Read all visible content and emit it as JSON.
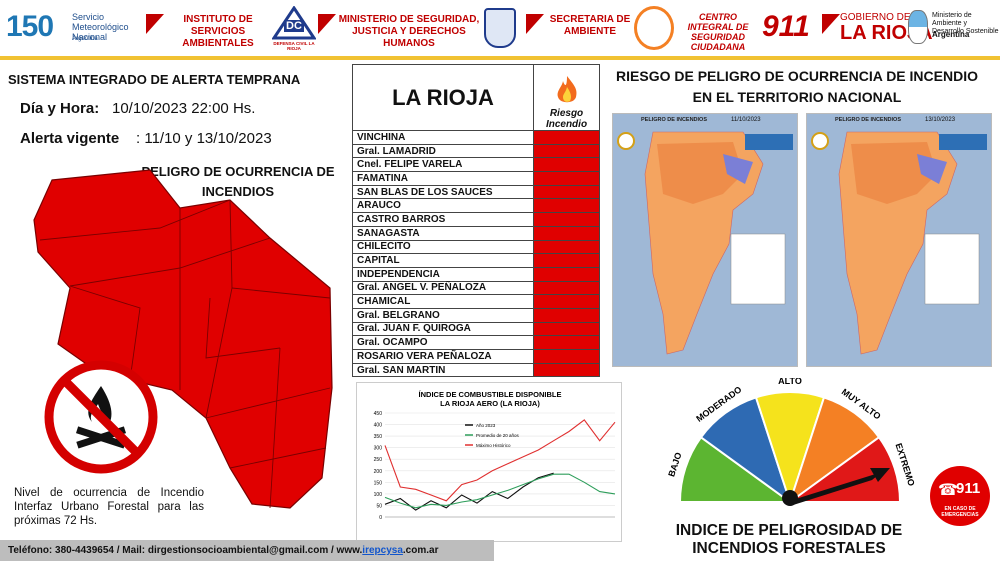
{
  "header": {
    "smn_number": "150",
    "smn_name": "Servicio Meteorológico Nacional",
    "smn_country": "Argentina",
    "inst_servicios": "INSTITUTO DE SERVICIOS AMBIENTALES",
    "dc_badge": "DC",
    "dc_label": "DEFENSA CIVIL LA RIOJA",
    "ministerio_seg": "MINISTERIO DE SEGURIDAD, JUSTICIA Y DERECHOS HUMANOS",
    "secretaria": "SECRETARIA DE AMBIENTE",
    "centro": "CENTRO INTEGRAL DE SEGURIDAD CIUDADANA",
    "n911": "911",
    "gobierno_top": "GOBIERNO DE",
    "gobierno_bottom": "LA RIOJA",
    "min_ambiente": "Ministerio de Ambiente y Desarrollo Sostenible",
    "min_ambiente_country": "Argentina"
  },
  "left": {
    "title": "SISTEMA INTEGRADO DE ALERTA TEMPRANA",
    "dia_hora_label": "Día y Hora:",
    "dia_hora_value": "10/10/2023  22:00 Hs.",
    "alerta_label": "Alerta vigente",
    "alerta_value": ": 11/10 y 13/10/2023",
    "peligro_title": "PELIGRO DE OCURRENCIA DE INCENDIOS",
    "nivel_text": "Nivel de ocurrencia de Incendio Interfaz Urbano Forestal para las próximas 72 Hs."
  },
  "table": {
    "title": "LA RIOJA",
    "risk_header": "Riesgo Incendio",
    "risk_color": "#e00000",
    "departments": [
      "VINCHINA",
      "Gral. LAMADRID",
      "Cnel. FELIPE VARELA",
      "FAMATINA",
      "SAN BLAS DE LOS SAUCES",
      "ARAUCO",
      "CASTRO BARROS",
      "SANAGASTA",
      "CHILECITO",
      "CAPITAL",
      "INDEPENDENCIA",
      "Gral. ANGEL V.  PEÑALOZA",
      "CHAMICAL",
      "Gral. BELGRANO",
      "Gral. JUAN F. QUIROGA",
      "Gral. OCAMPO",
      "ROSARIO VERA PEÑALOZA",
      "Gral. SAN MARTIN"
    ]
  },
  "maps": {
    "title": "RIESGO DE PELIGRO DE OCURRENCIA DE INCENDIO EN EL TERRITORIO NACIONAL",
    "map1_title": "PELIGRO DE INCENDIOS",
    "map1_date": "11/10/2023",
    "map2_title": "PELIGRO DE INCENDIOS",
    "map2_date": "13/10/2023"
  },
  "chart_data": {
    "type": "line",
    "title": "ÍNDICE DE COMBUSTIBLE DISPONIBLE LA RIOJA AERO (LA RIOJA)",
    "ylim": [
      0,
      450
    ],
    "yticks": [
      0,
      50,
      100,
      150,
      200,
      250,
      300,
      350,
      400,
      450
    ],
    "legend_position": "top-left",
    "series": [
      {
        "name": "Año 2023",
        "color": "#111111",
        "values": [
          55,
          80,
          30,
          70,
          40,
          95,
          60,
          110,
          80,
          130,
          170,
          190
        ]
      },
      {
        "name": "Promedio de 20 años",
        "color": "#2e9e5b",
        "values": [
          85,
          60,
          40,
          55,
          50,
          65,
          75,
          95,
          115,
          140,
          165,
          185,
          185,
          150,
          110,
          100
        ]
      },
      {
        "name": "Máximo Histórico",
        "color": "#e03030",
        "values": [
          310,
          130,
          120,
          95,
          70,
          140,
          160,
          200,
          230,
          260,
          290,
          330,
          370,
          420,
          330,
          410
        ]
      }
    ]
  },
  "gauge": {
    "segments": [
      "BAJO",
      "MODERADO",
      "ALTO",
      "MUY ALTO",
      "EXTREMO"
    ],
    "colors": [
      "#5cb531",
      "#2e6ab3",
      "#f5e31c",
      "#f48024",
      "#e01818"
    ],
    "level": "EXTREMO",
    "title": "INDICE DE PELIGROSIDAD DE INCENDIOS FORESTALES",
    "badge_911": "911",
    "badge_sub": "EN CASO DE EMERGENCIAS"
  },
  "footer": {
    "phone": "Teléfono:  380-4439654  / Mail: dirgestionsocioambiental@gmail.com / www.",
    "link": "irepcysa",
    "suffix": ".com.ar"
  }
}
